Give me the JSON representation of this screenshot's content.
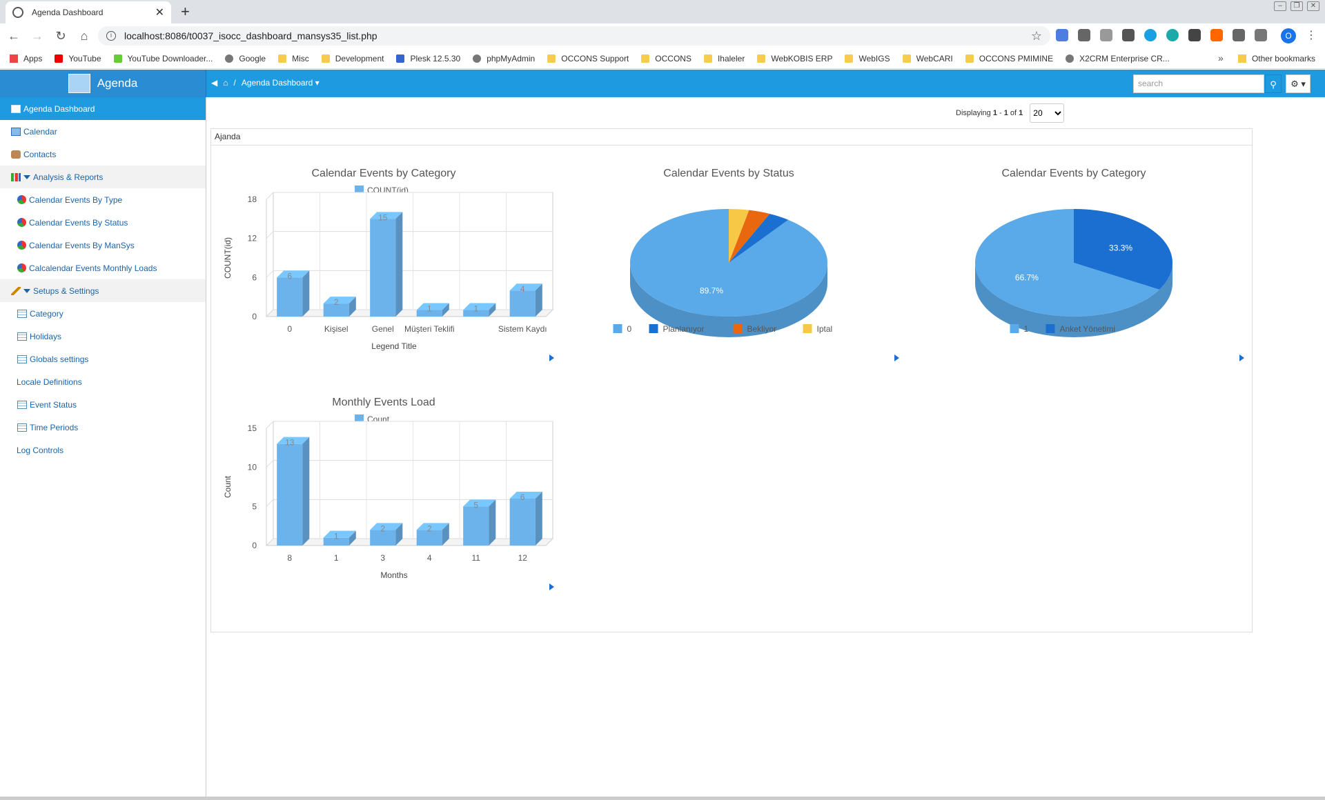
{
  "browser": {
    "tab_title": "Agenda Dashboard",
    "url": "localhost:8086/t0037_isocc_dashboard_mansys35_list.php",
    "bookmarks": [
      "Apps",
      "YouTube",
      "YouTube Downloader...",
      "Google",
      "Misc",
      "Development",
      "Plesk 12.5.30",
      "phpMyAdmin",
      "OCCONS Support",
      "OCCONS",
      "Ihaleler",
      "WebKOBIS ERP",
      "WebIGS",
      "WebCARI",
      "OCCONS PMIMINE",
      "X2CRM Enterprise CR..."
    ],
    "other_bookmarks": "Other bookmarks",
    "profile_initial": "O"
  },
  "header": {
    "brand": "Agenda",
    "breadcrumb": "Agenda Dashboard",
    "search_placeholder": "search"
  },
  "sidebar": {
    "items": [
      {
        "label": "Agenda Dashboard",
        "type": "active"
      },
      {
        "label": "Calendar",
        "type": "top"
      },
      {
        "label": "Contacts",
        "type": "top"
      },
      {
        "label": "Analysis & Reports",
        "type": "group"
      },
      {
        "label": "Calendar Events By Type",
        "type": "sub"
      },
      {
        "label": "Calendar Events By Status",
        "type": "sub"
      },
      {
        "label": "Calendar Events By ManSys",
        "type": "sub"
      },
      {
        "label": "Calcalendar Events Monthly Loads",
        "type": "sub"
      },
      {
        "label": "Setups & Settings",
        "type": "group"
      },
      {
        "label": "Category",
        "type": "sub"
      },
      {
        "label": "Holidays",
        "type": "sub"
      },
      {
        "label": "Globals settings",
        "type": "sub"
      },
      {
        "label": "Locale Definitions",
        "type": "plain"
      },
      {
        "label": "Event Status",
        "type": "sub"
      },
      {
        "label": "Time Periods",
        "type": "sub"
      },
      {
        "label": "Log Controls",
        "type": "plain"
      }
    ]
  },
  "pager": {
    "prefix": "Displaying",
    "from": "1",
    "to": "1",
    "of": "1",
    "page_size": "20"
  },
  "panel": {
    "title": "Ajanda"
  },
  "chart_data": [
    {
      "type": "bar",
      "title": "Calendar Events by Category",
      "legend": "COUNT(id)",
      "categories": [
        "0",
        "Kişisel",
        "Genel",
        "Müşteri Teklifi",
        "",
        "Sistem Kaydı"
      ],
      "values": [
        6,
        2,
        15,
        1,
        1,
        4
      ],
      "xlabel": "Legend Title",
      "ylabel": "COUNT(id)",
      "yticks": [
        0,
        6,
        12,
        18
      ],
      "ylim": [
        0,
        18
      ],
      "color": "#6cb2eb"
    },
    {
      "type": "pie",
      "title": "Calendar Events by Status",
      "labels": [
        "0",
        "Planlanıyor",
        "Bekliyor",
        "Iptal"
      ],
      "values": [
        89.7,
        3.5,
        3.5,
        3.3
      ],
      "shown_labels": [
        "89.7%",
        "",
        "",
        ""
      ],
      "colors": [
        "#5aa9e8",
        "#1a6fd0",
        "#e8670f",
        "#f6c845"
      ]
    },
    {
      "type": "pie",
      "title": "Calendar Events by Category",
      "labels": [
        "1",
        "Anket Yönetimi"
      ],
      "values": [
        66.7,
        33.3
      ],
      "shown_labels": [
        "66.7%",
        "33.3%"
      ],
      "colors": [
        "#5aa9e8",
        "#1a6fd0"
      ]
    },
    {
      "type": "bar",
      "title": "Monthly Events Load",
      "legend": "Count",
      "categories": [
        "8",
        "1",
        "3",
        "4",
        "11",
        "12"
      ],
      "values": [
        13,
        1,
        2,
        2,
        5,
        6
      ],
      "xlabel": "Months",
      "ylabel": "Count",
      "yticks": [
        0,
        5,
        10,
        15
      ],
      "ylim": [
        0,
        15
      ],
      "color": "#6cb2eb"
    }
  ]
}
